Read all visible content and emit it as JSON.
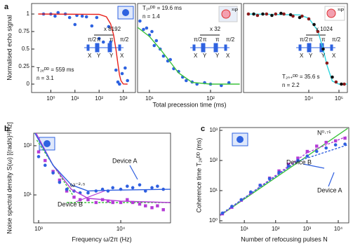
{
  "chart_data": [
    {
      "type": "scatter",
      "label": "a",
      "ylabel": "Normalised echo signal",
      "xlog": true,
      "xlim": [
        0.16,
        3200
      ],
      "ylim": [
        -0.12,
        1.15
      ],
      "xticks": [
        {
          "value": 1,
          "label": "10⁰"
        },
        {
          "value": 10,
          "label": "10¹"
        },
        {
          "value": 100,
          "label": "10²"
        },
        {
          "value": 1000,
          "label": "10³"
        }
      ],
      "yticks": [
        0,
        0.25,
        0.5,
        0.75,
        1
      ],
      "annotations": [
        "T₂ₑᴰᴰ = 559 ms",
        "n = 3.1",
        "x 8192",
        "π/2",
        "π",
        "π",
        "π/2",
        "X",
        "Y",
        "Y",
        "X"
      ],
      "series": [
        {
          "mode": "markers",
          "color": "#2e62e0",
          "x": [
            0.5,
            1,
            1.5,
            2,
            4,
            6,
            10,
            12,
            20,
            30,
            50,
            80,
            100,
            150,
            250,
            300,
            500,
            600,
            700,
            900,
            1200,
            1500
          ],
          "values": [
            1.0,
            1.0,
            0.97,
            1.02,
            1.0,
            0.95,
            0.85,
            0.98,
            0.97,
            0.96,
            0.83,
            0.95,
            0.65,
            0.6,
            0.82,
            0.6,
            0.2,
            0.03,
            0.0,
            0.15,
            0.23,
            0.05
          ]
        },
        {
          "mode": "line",
          "color": "#e8211b",
          "x": [
            0.3,
            100,
            200,
            300,
            400,
            500,
            600,
            700,
            800,
            1000,
            1500
          ],
          "values": [
            1,
            0.995,
            0.96,
            0.86,
            0.7,
            0.49,
            0.29,
            0.13,
            0.05,
            0.002,
            0
          ]
        }
      ]
    },
    {
      "type": "scatter",
      "xlabel": "Total precession time (ms)",
      "icon_label": "³¹P",
      "xlog": true,
      "xlim": [
        6.4,
        320
      ],
      "ylim": [
        -0.12,
        1.15
      ],
      "xticks": [
        {
          "value": 10,
          "label": "10¹"
        },
        {
          "value": 100,
          "label": "10²"
        }
      ],
      "annotations": [
        "T₂ₙᴰᴰ = 19.6 ms",
        "n = 1.4",
        "x 32",
        "π/2",
        "π",
        "π",
        "π/2",
        "X",
        "Y",
        "Y",
        "X"
      ],
      "series": [
        {
          "mode": "markers",
          "color": "#2e62e0",
          "x": [
            7,
            8,
            9,
            10,
            11,
            12,
            13,
            15,
            17,
            20,
            22,
            25,
            30,
            35,
            40,
            50,
            60,
            80,
            100,
            150,
            200
          ],
          "values": [
            0.9,
            0.78,
            0.8,
            0.7,
            0.75,
            0.55,
            0.62,
            0.5,
            0.4,
            0.33,
            0.35,
            0.22,
            0.18,
            0.1,
            0.05,
            0.03,
            0.0,
            0.02,
            0.0,
            -0.02,
            0.02
          ]
        },
        {
          "mode": "line",
          "color": "#3cc23c",
          "x": [
            6.4,
            10,
            15,
            20,
            30,
            50,
            100,
            300
          ],
          "values": [
            0.81,
            0.68,
            0.5,
            0.36,
            0.16,
            0.024,
            0,
            0
          ]
        }
      ]
    },
    {
      "type": "scatter",
      "icon_label": "³¹P",
      "xlog": true,
      "xlim": [
        69,
        190000
      ],
      "ylim": [
        -0.12,
        1.15
      ],
      "xticks": [
        {
          "value": 10000,
          "label": "10⁴"
        },
        {
          "value": 100000,
          "label": "10⁵"
        }
      ],
      "annotations": [
        "T₂ₙ₊ᴰᴰ = 35.6 s",
        "n = 2.2",
        "x 1024",
        "π/2",
        "π",
        "π",
        "π/2",
        "X",
        "Y",
        "Y",
        "X"
      ],
      "series": [
        {
          "mode": "line",
          "color": "#2fd6e0",
          "x": [
            100,
            5000,
            10000,
            20000,
            30000,
            40000,
            60000,
            100000,
            190000
          ],
          "values": [
            1,
            0.987,
            0.94,
            0.76,
            0.5,
            0.27,
            0.043,
            0,
            0
          ]
        },
        {
          "mode": "markers",
          "color": "#8b1a1a",
          "x": [
            100,
            200,
            400,
            800,
            1500,
            3000,
            6000,
            10000,
            20000,
            40000,
            80000,
            150000
          ],
          "values": [
            1,
            0.98,
            1.0,
            1.0,
            1.0,
            0.97,
            0.97,
            0.93,
            0.75,
            0.3,
            0.03,
            0.0
          ]
        },
        {
          "mode": "markers",
          "color": "#111111",
          "x": [
            150,
            300,
            600,
            1200,
            2500,
            5000,
            15000,
            30000,
            60000,
            120000
          ],
          "values": [
            1.0,
            1.0,
            0.98,
            1.01,
            0.99,
            0.95,
            0.85,
            0.5,
            0.1,
            0.0
          ]
        }
      ]
    },
    {
      "type": "scatter",
      "label": "b",
      "xlabel": "Frequency ω/2π (Hz)",
      "ylabel": "Noise spectral density S(ω) [(rad/s)²/Hz]",
      "xlog": true,
      "ylog": true,
      "xlim": [
        871,
        40400
      ],
      "ylim": [
        2.7,
        180
      ],
      "xticks": [
        {
          "value": 1000,
          "label": "10³"
        },
        {
          "value": 10000,
          "label": "10⁴"
        }
      ],
      "yticks": [
        {
          "value": 10,
          "label": "10¹"
        },
        {
          "value": 100,
          "label": "10²"
        }
      ],
      "annotations": [
        "Device A",
        "Device B",
        "ω⁻²·⁵"
      ],
      "series": [
        {
          "mode": "line",
          "color": "#3cc23c",
          "dash": true,
          "x": [
            950,
            2600
          ],
          "values": [
            130,
            10
          ]
        },
        {
          "mode": "line",
          "color": "#3cc23c",
          "dash": true,
          "x": [
            2200,
            40000
          ],
          "values": [
            7,
            7
          ]
        },
        {
          "mode": "markers",
          "marker": "square",
          "color": "#b43bd6",
          "x": [
            1000,
            1200,
            1500,
            1800,
            2200,
            2700,
            3200,
            4000,
            5000,
            6000,
            7000,
            8000,
            10000,
            12000,
            14000,
            17000,
            20000,
            24000,
            28000,
            33000
          ],
          "values": [
            75,
            50,
            30,
            20,
            12,
            9,
            8,
            8,
            7,
            8,
            7.5,
            7,
            7,
            8,
            7,
            6.5,
            6,
            5.5,
            6,
            5
          ]
        },
        {
          "mode": "markers",
          "color": "#2f5fe0",
          "x": [
            1000,
            1200,
            1500,
            1800,
            2200,
            2700,
            3200,
            4000,
            5000,
            6000,
            7000,
            8000,
            10000,
            12000,
            14000,
            17000,
            20000,
            24000,
            28000,
            33000
          ],
          "values": [
            60,
            40,
            28,
            18,
            13,
            12,
            11,
            11,
            12,
            13,
            12,
            14,
            13,
            15,
            14,
            16,
            12,
            14,
            15,
            13
          ]
        },
        {
          "mode": "line",
          "color": "#b43bd6",
          "x": [
            900,
            1500,
            2500,
            4000,
            10000,
            40000
          ],
          "values": [
            200,
            40,
            13,
            8.5,
            7.5,
            7
          ]
        },
        {
          "mode": "line",
          "color": "#2f5fe0",
          "x": [
            900,
            1500,
            2500,
            4000,
            8000,
            40000
          ],
          "values": [
            180,
            40,
            16,
            12,
            12.5,
            13
          ]
        }
      ]
    },
    {
      "type": "scatter",
      "label": "c",
      "xlabel": "Number of refocusing pulses N",
      "ylabel": "Coherence time T₂ₑᴰᴰ (ms)",
      "xlog": true,
      "ylog": true,
      "xlim": [
        1.63,
        21700
      ],
      "ylim": [
        0.85,
        1240
      ],
      "xticks": [
        {
          "value": 10,
          "label": "10¹"
        },
        {
          "value": 100,
          "label": "10²"
        },
        {
          "value": 1000,
          "label": "10³"
        },
        {
          "value": 10000,
          "label": "10⁴"
        }
      ],
      "yticks": [
        {
          "value": 1,
          "label": "10⁰"
        },
        {
          "value": 10,
          "label": "10¹"
        },
        {
          "value": 100,
          "label": "10²"
        },
        {
          "value": 1000,
          "label": "10³"
        }
      ],
      "annotations": [
        "N⁰·⁷¹",
        "Device B",
        "Device A"
      ],
      "series": [
        {
          "mode": "line",
          "color": "#3cc23c",
          "x": [
            1.7,
            20000
          ],
          "values": [
            1.5,
            1160
          ]
        },
        {
          "mode": "line",
          "color": "#b43bd6",
          "dash": true,
          "x": [
            1.7,
            1000,
            20000
          ],
          "values": [
            1.5,
            180,
            650
          ]
        },
        {
          "mode": "line",
          "color": "#2f5fe0",
          "dash": true,
          "x": [
            1.7,
            500,
            20000
          ],
          "values": [
            1.6,
            95,
            330
          ]
        },
        {
          "mode": "markers",
          "marker": "square",
          "color": "#b43bd6",
          "x": [
            2,
            4,
            8,
            16,
            32,
            64,
            128,
            256,
            512,
            1024,
            2048,
            4096,
            8192,
            16384
          ],
          "values": [
            1.7,
            2.8,
            4.8,
            8.5,
            15,
            26,
            45,
            75,
            120,
            200,
            300,
            400,
            450,
            550
          ]
        },
        {
          "mode": "markers",
          "color": "#2f5fe0",
          "x": [
            2,
            4,
            8,
            16,
            32,
            64,
            128,
            256,
            512,
            1024,
            2048,
            4096,
            8192,
            16384
          ],
          "values": [
            1.8,
            3.0,
            5,
            9,
            15,
            25,
            40,
            65,
            100,
            140,
            200,
            260,
            330,
            350
          ]
        }
      ]
    }
  ]
}
